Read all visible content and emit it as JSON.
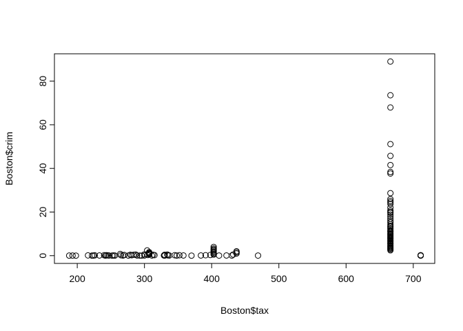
{
  "chart_data": {
    "type": "scatter",
    "x_label": "Boston$tax",
    "y_label": "Boston$crim",
    "xlim": [
      166.04,
      731.96
    ],
    "ylim": [
      -3.553,
      92.535
    ],
    "xticks": [
      200,
      300,
      400,
      500,
      600,
      700
    ],
    "yticks": [
      0,
      20,
      40,
      60,
      80
    ],
    "grid": false,
    "color": "#000000",
    "series": [
      {
        "name": "Boston",
        "color": "#000000",
        "x": [
          666,
          666,
          666,
          666,
          666,
          666,
          666,
          666,
          666,
          666,
          666,
          666,
          666,
          666,
          666,
          666,
          666,
          666,
          666,
          666,
          666,
          666,
          666,
          666,
          666,
          666,
          666,
          666,
          666,
          666,
          666,
          666,
          666,
          666,
          666,
          666,
          666,
          666,
          666,
          666,
          666,
          666,
          666,
          666,
          666,
          666,
          666,
          666,
          666,
          666,
          666,
          666,
          711,
          711,
          711,
          711,
          711,
          296,
          242,
          222,
          311,
          307,
          307,
          307,
          307,
          307,
          304,
          279,
          252,
          233,
          243,
          469,
          432,
          437,
          437,
          437,
          403,
          403,
          403,
          403,
          403,
          403,
          403,
          403,
          398,
          384,
          391,
          411,
          188,
          193,
          198,
          216,
          224,
          226,
          245,
          247,
          254,
          264,
          270,
          276,
          281,
          284,
          287,
          289,
          293,
          300,
          305,
          313,
          315,
          329,
          330,
          334,
          337,
          345,
          348,
          352,
          358,
          370,
          422,
          430,
          300,
          330,
          335,
          265,
          240,
          256,
          268
        ],
        "values": [
          88.98,
          73.53,
          67.92,
          51.14,
          45.75,
          41.53,
          38.35,
          37.66,
          28.66,
          25.94,
          25.05,
          24.39,
          23.65,
          22.05,
          20.72,
          20.08,
          19.61,
          18.81,
          17.87,
          16.81,
          15.88,
          15.18,
          14.33,
          13.68,
          13.36,
          12.8,
          12.25,
          11.58,
          11.11,
          10.83,
          10.23,
          9.97,
          9.59,
          9.19,
          8.79,
          8.49,
          8.15,
          7.84,
          7.53,
          7.05,
          6.8,
          6.44,
          5.87,
          5.69,
          5.29,
          4.84,
          4.42,
          4.09,
          3.69,
          3.32,
          2.92,
          2.45,
          0.17,
          0.22,
          0.06,
          0.05,
          0.05,
          0.006,
          0.027,
          0.032,
          0.088,
          0.627,
          1.05,
          1.23,
          0.8,
          1.61,
          2.4,
          0.4,
          0.03,
          0.1,
          0.2,
          0.05,
          0.5,
          1.0,
          1.5,
          2.0,
          4.0,
          3.3,
          2.8,
          2.4,
          1.9,
          1.4,
          0.9,
          0.5,
          0.3,
          0.1,
          0.2,
          0.05,
          0.03,
          0.05,
          0.02,
          0.13,
          0.05,
          0.15,
          0.17,
          0.08,
          0.1,
          0.8,
          0.3,
          0.06,
          0.2,
          0.4,
          0.5,
          0.1,
          0.06,
          0.1,
          0.3,
          0.4,
          0.25,
          0.1,
          0.05,
          0.5,
          0.1,
          0.2,
          0.06,
          0.2,
          0.1,
          0.02,
          0.1,
          0.08,
          0.6,
          0.4,
          0.15,
          0.2,
          0.2,
          0.06,
          0.08
        ]
      }
    ]
  }
}
